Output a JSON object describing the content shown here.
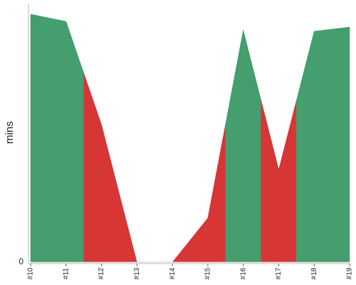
{
  "chart_data": {
    "type": "area",
    "y_label": "mins",
    "categories": [
      "#10",
      "#11",
      "#12",
      "#13",
      "#14",
      "#15",
      "#16",
      "#17",
      "#18",
      "#19"
    ],
    "values": [
      95.9,
      93.1,
      53.2,
      0,
      0,
      17.1,
      89.8,
      35.8,
      89.3,
      90.9
    ],
    "colors": [
      "#449e6d",
      "#449e6d",
      "#d63636",
      "#d63636",
      "#d63636",
      "#d63636",
      "#449e6d",
      "#d63636",
      "#449e6d",
      "#449e6d"
    ],
    "ylim": [
      0,
      100
    ],
    "yticks": [
      0
    ]
  }
}
